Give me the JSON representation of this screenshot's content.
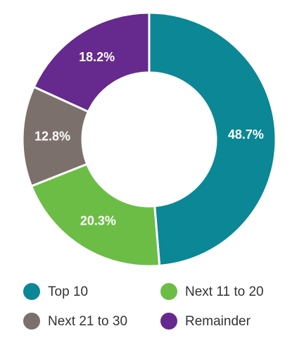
{
  "chart_data": {
    "type": "donut",
    "categories": [
      "Top 10",
      "Next 11 to 20",
      "Next 21 to 30",
      "Remainder"
    ],
    "values": [
      48.7,
      20.3,
      12.8,
      18.2
    ],
    "value_labels": [
      "48.7%",
      "20.3%",
      "12.8%",
      "18.2%"
    ],
    "colors": [
      "#0b8796",
      "#6cbd45",
      "#7b706b",
      "#66298e"
    ],
    "legend": "bottom"
  }
}
